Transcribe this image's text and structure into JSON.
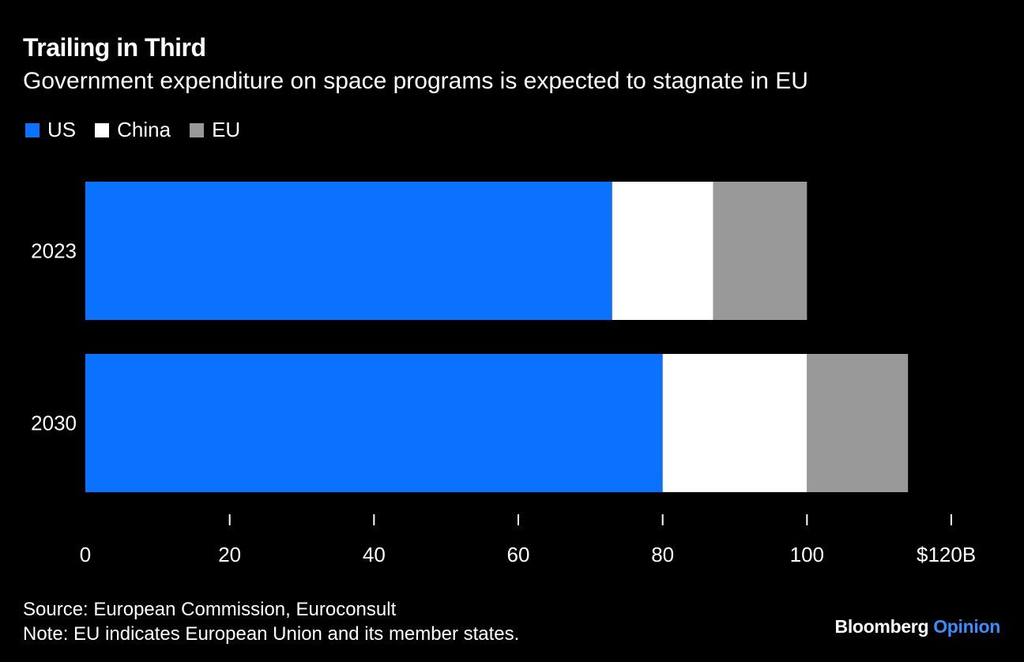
{
  "title": "Trailing in Third",
  "subtitle": "Government expenditure on space programs is expected to stagnate in EU",
  "legend": [
    {
      "label": "US",
      "color": "#0a72ff"
    },
    {
      "label": "China",
      "color": "#ffffff"
    },
    {
      "label": "EU",
      "color": "#999999"
    }
  ],
  "chart_data": {
    "type": "bar",
    "orientation": "horizontal",
    "stacked": true,
    "categories": [
      "2023",
      "2030"
    ],
    "series": [
      {
        "name": "US",
        "color": "#0a72ff",
        "values": [
          73,
          80
        ]
      },
      {
        "name": "China",
        "color": "#ffffff",
        "values": [
          14,
          20
        ]
      },
      {
        "name": "EU",
        "color": "#999999",
        "values": [
          13,
          14
        ]
      }
    ],
    "xlim": [
      0,
      120
    ],
    "x_ticks": [
      0,
      20,
      40,
      60,
      80,
      100,
      120
    ],
    "x_tick_labels": [
      "0",
      "20",
      "40",
      "60",
      "80",
      "100",
      "$120B"
    ],
    "grid": false,
    "legend_position": "top-left"
  },
  "footer": {
    "source": "Source: European Commission, Euroconsult",
    "note": "Note: EU indicates European Union and its member states."
  },
  "brand": {
    "name": "Bloomberg",
    "product": "Opinion"
  }
}
